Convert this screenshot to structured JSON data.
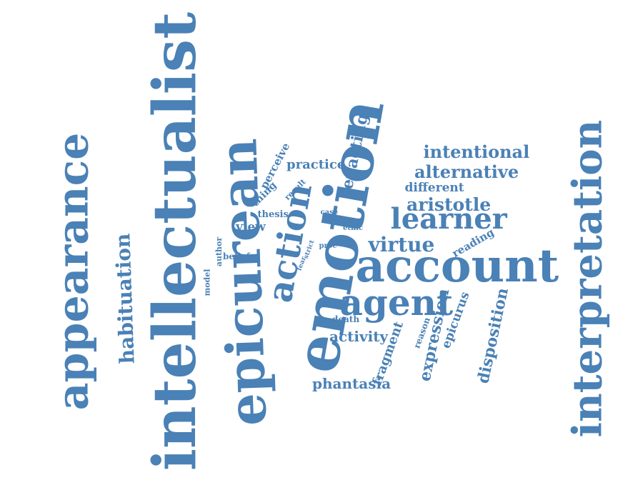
{
  "theme": {
    "word_color": "#4a81b6",
    "background": "#ffffff"
  },
  "words": [
    {
      "text": "intellectualist",
      "orient": "up"
    },
    {
      "text": "appearance",
      "orient": "up"
    },
    {
      "text": "epicurean",
      "orient": "up"
    },
    {
      "text": "interpretation",
      "orient": "up"
    },
    {
      "text": "emotion",
      "orient": "up"
    },
    {
      "text": "account",
      "orient": "horizontal"
    },
    {
      "text": "action",
      "orient": "up"
    },
    {
      "text": "agent",
      "orient": "horizontal"
    },
    {
      "text": "learner",
      "orient": "horizontal"
    },
    {
      "text": "habituation",
      "orient": "up"
    },
    {
      "text": "virtue",
      "orient": "horizontal"
    },
    {
      "text": "intentional",
      "orient": "horizontal"
    },
    {
      "text": "alternative",
      "orient": "horizontal"
    },
    {
      "text": "aristotle",
      "orient": "horizontal"
    },
    {
      "text": "enacting",
      "orient": "up"
    },
    {
      "text": "expression",
      "orient": "up"
    },
    {
      "text": "disposition",
      "orient": "up"
    },
    {
      "text": "phantasia",
      "orient": "horizontal"
    },
    {
      "text": "activity",
      "orient": "horizontal"
    },
    {
      "text": "fragment",
      "orient": "up"
    },
    {
      "text": "epicurus",
      "orient": "up"
    },
    {
      "text": "practice",
      "orient": "horizontal"
    },
    {
      "text": "different",
      "orient": "horizontal"
    },
    {
      "text": "perceive",
      "orient": "up"
    },
    {
      "text": "reading",
      "orient": "up"
    },
    {
      "text": "view",
      "orient": "horizontal"
    },
    {
      "text": "thing",
      "orient": "up"
    },
    {
      "text": "thesis",
      "orient": "horizontal"
    },
    {
      "text": "result",
      "orient": "up"
    },
    {
      "text": "belief",
      "orient": "horizontal"
    },
    {
      "text": "author",
      "orient": "up"
    },
    {
      "text": "model",
      "orient": "up"
    },
    {
      "text": "death",
      "orient": "horizontal"
    },
    {
      "text": "reason",
      "orient": "up"
    },
    {
      "text": "case",
      "orient": "horizontal"
    },
    {
      "text": "ethic",
      "orient": "horizontal"
    },
    {
      "text": "proc",
      "orient": "horizontal"
    },
    {
      "text": "strict",
      "orient": "up"
    },
    {
      "text": "fear",
      "orient": "up"
    }
  ]
}
